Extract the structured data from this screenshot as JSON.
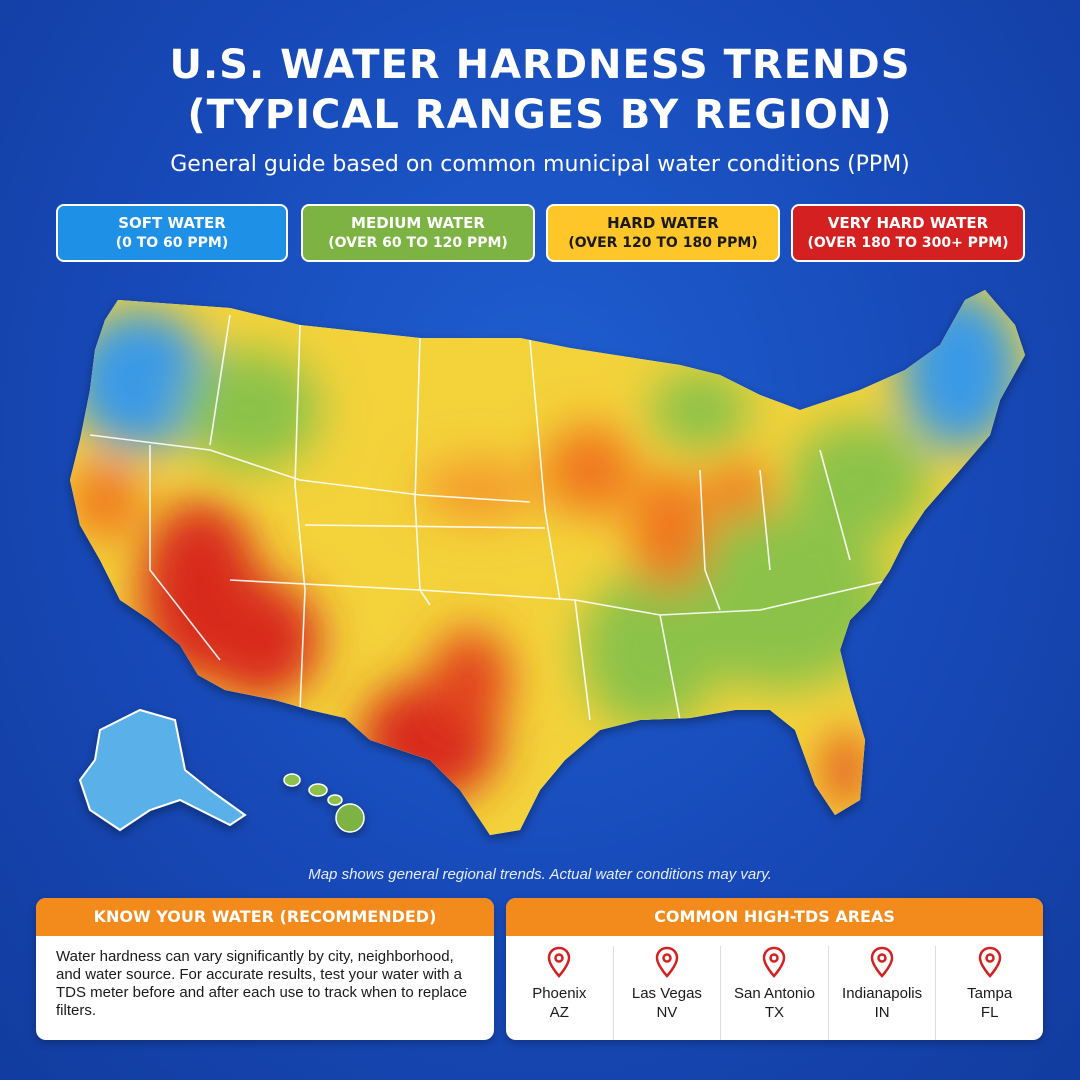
{
  "header": {
    "title_line1": "U.S. WATER HARDNESS TRENDS",
    "title_line2": "(TYPICAL RANGES BY REGION)",
    "subtitle": "General guide based on common municipal water conditions (PPM)"
  },
  "legend": [
    {
      "name": "SOFT WATER",
      "range": "(0 TO 60 PPM)",
      "color": "#1e90e6"
    },
    {
      "name": "MEDIUM WATER",
      "range": "(OVER 60 TO 120 PPM)",
      "color": "#7cb342"
    },
    {
      "name": "HARD WATER",
      "range": "(OVER 120 TO 180 PPM)",
      "color": "#ffc629",
      "text_color": "#1a1a1a"
    },
    {
      "name": "VERY HARD WATER",
      "range": "(OVER 180 TO 300+ PPM)",
      "color": "#d42020"
    }
  ],
  "map": {
    "note": "Map shows general regional trends. Actual water conditions may vary."
  },
  "know_your_water": {
    "heading": "KNOW YOUR WATER (RECOMMENDED)",
    "body": "Water hardness can vary significantly by city, neighborhood, and water source. For accurate results, test your water with a TDS meter before and after each use to track when to replace filters."
  },
  "high_tds": {
    "heading": "COMMON HIGH-TDS AREAS",
    "pin_color": "#d42020",
    "cities": [
      {
        "city": "Phoenix",
        "state": "AZ"
      },
      {
        "city": "Las Vegas",
        "state": "NV"
      },
      {
        "city": "San Antonio",
        "state": "TX"
      },
      {
        "city": "Indianapolis",
        "state": "IN"
      },
      {
        "city": "Tampa",
        "state": "FL"
      }
    ]
  }
}
